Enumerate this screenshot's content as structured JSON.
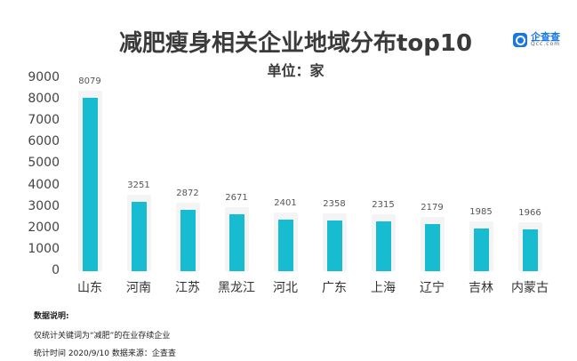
{
  "header": {
    "title": "减肥瘦身相关企业地域分布top10",
    "subtitle": "单位：家",
    "logo_cn": "企查查",
    "logo_en": "Qcc.com",
    "logo_icon": "qcc-logo-icon"
  },
  "footer": {
    "note_title": "数据说明:",
    "note_line1": "仅统计关键词为“减肥”的在业存续企业",
    "note_line2": "统计时间 2020/9/10    数据来源：企查查"
  },
  "colors": {
    "bar": "#17bcd0",
    "bar_shadow": "#f4f4f4",
    "text": "#3a3a3a"
  },
  "chart_data": {
    "type": "bar",
    "title": "减肥瘦身相关企业地域分布top10",
    "subtitle": "单位：家",
    "xlabel": "",
    "ylabel": "",
    "categories": [
      "山东",
      "河南",
      "江苏",
      "黑龙江",
      "河北",
      "广东",
      "上海",
      "辽宁",
      "吉林",
      "内蒙古"
    ],
    "values": [
      8079,
      3251,
      2872,
      2671,
      2401,
      2358,
      2315,
      2179,
      1985,
      1966
    ],
    "ylim": [
      0,
      9000
    ],
    "yticks": [
      0,
      1000,
      2000,
      3000,
      4000,
      5000,
      6000,
      7000,
      8000,
      9000
    ],
    "grid": false,
    "legend": "none",
    "data_labels": true
  }
}
